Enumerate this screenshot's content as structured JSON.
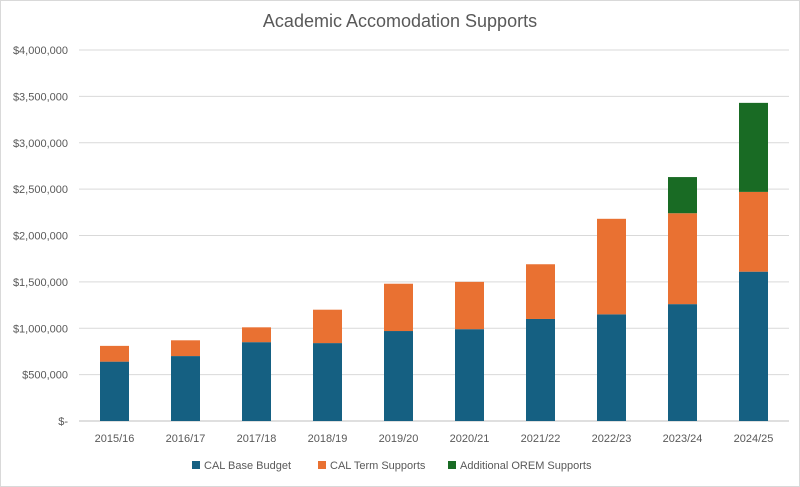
{
  "chart_data": {
    "type": "bar",
    "stacked": true,
    "title": "Academic Accomodation Supports",
    "xlabel": "",
    "ylabel": "",
    "categories": [
      "2015/16",
      "2016/17",
      "2017/18",
      "2018/19",
      "2019/20",
      "2020/21",
      "2021/22",
      "2022/23",
      "2023/24",
      "2024/25"
    ],
    "series": [
      {
        "name": "CAL Base Budget",
        "color": "#156082",
        "values": [
          640000,
          700000,
          850000,
          840000,
          970000,
          990000,
          1100000,
          1150000,
          1260000,
          1610000
        ]
      },
      {
        "name": "CAL Term Supports",
        "color": "#E97132",
        "values": [
          170000,
          170000,
          160000,
          360000,
          510000,
          510000,
          590000,
          1030000,
          980000,
          860000
        ]
      },
      {
        "name": "Additional OREM Supports",
        "color": "#196B24",
        "values": [
          0,
          0,
          0,
          0,
          0,
          0,
          0,
          0,
          390000,
          960000
        ]
      }
    ],
    "ylim": [
      0,
      4000000
    ],
    "yticks": [
      0,
      500000,
      1000000,
      1500000,
      2000000,
      2500000,
      3000000,
      3500000,
      4000000
    ],
    "ytick_labels": [
      "$-",
      "$500,000",
      "$1,000,000",
      "$1,500,000",
      "$2,000,000",
      "$2,500,000",
      "$3,000,000",
      "$3,500,000",
      "$4,000,000"
    ],
    "grid": true,
    "legend_position": "bottom"
  }
}
